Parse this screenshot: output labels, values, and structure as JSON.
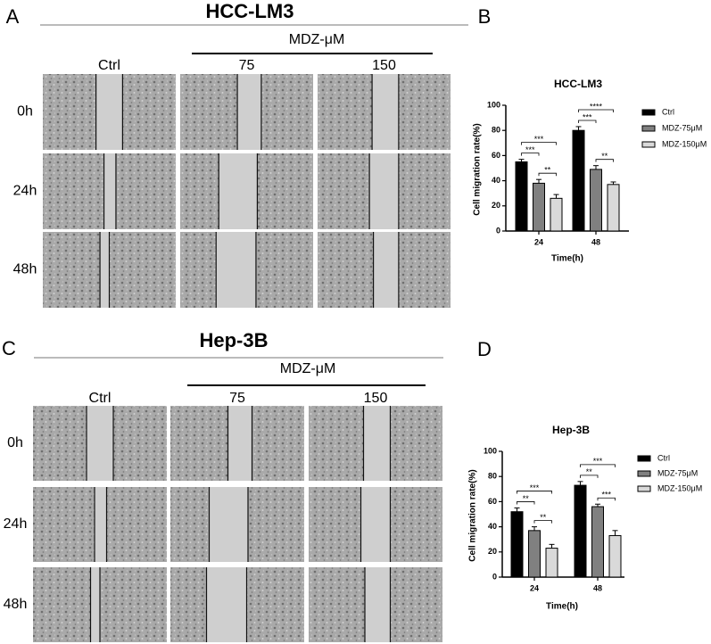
{
  "panels": [
    {
      "letter": "A",
      "title": "HCC-LM3",
      "group_label": "MDZ-μM",
      "columns": [
        "Ctrl",
        "75",
        "150"
      ],
      "rows": [
        "0h",
        "24h",
        "48h"
      ]
    },
    {
      "letter": "C",
      "title": "Hep-3B",
      "group_label": "MDZ-μM",
      "columns": [
        "Ctrl",
        "75",
        "150"
      ],
      "rows": [
        "0h",
        "24h",
        "48h"
      ]
    }
  ],
  "chart_data": [
    {
      "letter": "B",
      "type": "bar",
      "title": "HCC-LM3",
      "x_label": "Time(h)",
      "y_label": "Cell migration rate(%)",
      "categories": [
        "24",
        "48"
      ],
      "ylim": [
        0,
        100
      ],
      "yticks": [
        0,
        20,
        40,
        60,
        80,
        100
      ],
      "series": [
        {
          "name": "Ctrl",
          "color": "#000000",
          "values": [
            55,
            80
          ],
          "errors": [
            2,
            3
          ]
        },
        {
          "name": "MDZ-75μM",
          "color": "#808080",
          "values": [
            38,
            49
          ],
          "errors": [
            3,
            3
          ]
        },
        {
          "name": "MDZ-150μM",
          "color": "#d9d9d9",
          "values": [
            26,
            37
          ],
          "errors": [
            3,
            2
          ]
        }
      ],
      "annotations": [
        {
          "category": "24",
          "pair": [
            "MDZ-75μM",
            "MDZ-150μM"
          ],
          "label": "**"
        },
        {
          "category": "24",
          "pair": [
            "Ctrl",
            "MDZ-75μM"
          ],
          "label": "***"
        },
        {
          "category": "24",
          "pair": [
            "Ctrl",
            "MDZ-150μM"
          ],
          "label": "***"
        },
        {
          "category": "48",
          "pair": [
            "MDZ-75μM",
            "MDZ-150μM"
          ],
          "label": "**"
        },
        {
          "category": "48",
          "pair": [
            "Ctrl",
            "MDZ-75μM"
          ],
          "label": "***"
        },
        {
          "category": "48",
          "pair": [
            "Ctrl",
            "MDZ-150μM"
          ],
          "label": "****"
        }
      ]
    },
    {
      "letter": "D",
      "type": "bar",
      "title": "Hep-3B",
      "x_label": "Time(h)",
      "y_label": "Cell migration rate(%)",
      "categories": [
        "24",
        "48"
      ],
      "ylim": [
        0,
        100
      ],
      "yticks": [
        0,
        20,
        40,
        60,
        80,
        100
      ],
      "series": [
        {
          "name": "Ctrl",
          "color": "#000000",
          "values": [
            52,
            73
          ],
          "errors": [
            3,
            3
          ]
        },
        {
          "name": "MDZ-75μM",
          "color": "#808080",
          "values": [
            37,
            56
          ],
          "errors": [
            3,
            2
          ]
        },
        {
          "name": "MDZ-150μM",
          "color": "#d9d9d9",
          "values": [
            23,
            33
          ],
          "errors": [
            3,
            4
          ]
        }
      ],
      "annotations": [
        {
          "category": "24",
          "pair": [
            "MDZ-75μM",
            "MDZ-150μM"
          ],
          "label": "**"
        },
        {
          "category": "24",
          "pair": [
            "Ctrl",
            "MDZ-75μM"
          ],
          "label": "**"
        },
        {
          "category": "24",
          "pair": [
            "Ctrl",
            "MDZ-150μM"
          ],
          "label": "***"
        },
        {
          "category": "48",
          "pair": [
            "MDZ-75μM",
            "MDZ-150μM"
          ],
          "label": "***"
        },
        {
          "category": "48",
          "pair": [
            "Ctrl",
            "MDZ-75μM"
          ],
          "label": "**"
        },
        {
          "category": "48",
          "pair": [
            "Ctrl",
            "MDZ-150μM"
          ],
          "label": "***"
        }
      ]
    }
  ]
}
